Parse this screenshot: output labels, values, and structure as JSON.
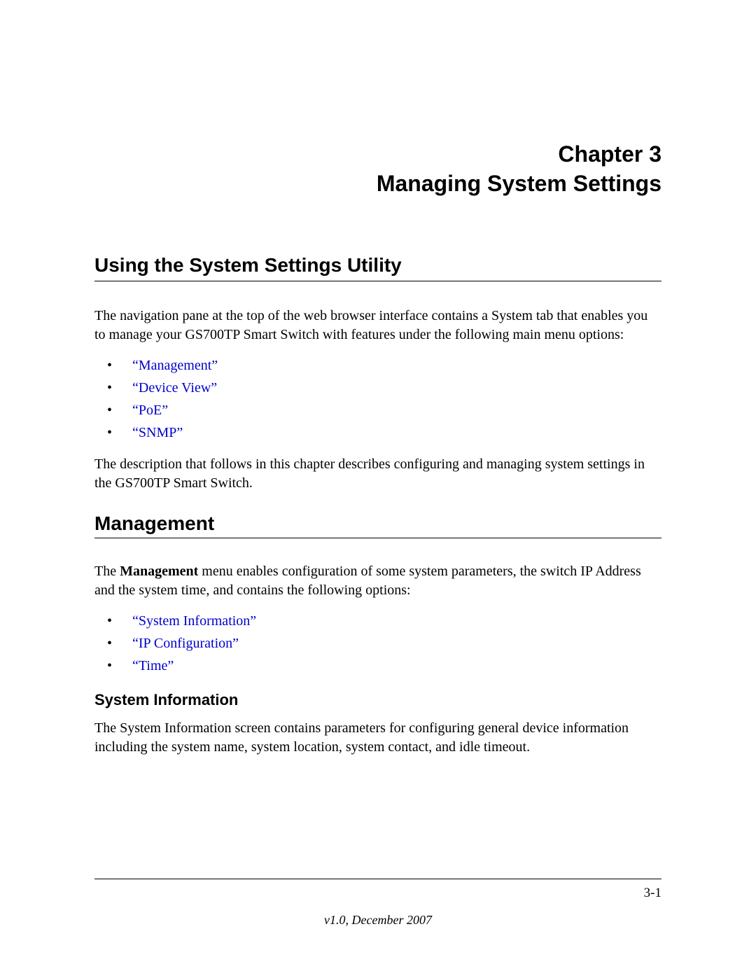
{
  "chapter": {
    "line1": "Chapter 3",
    "line2": "Managing System Settings"
  },
  "section1": {
    "heading": "Using the System Settings Utility",
    "intro": "The navigation pane at the top of the web browser interface contains a System tab that enables you to manage your GS700TP Smart Switch with features under the following main menu options:",
    "links": [
      "“Management”",
      "“Device View”",
      "“PoE”",
      "“SNMP”"
    ],
    "outro": "The description that follows in this chapter describes configuring and managing system settings in the GS700TP Smart Switch."
  },
  "section2": {
    "heading": "Management",
    "para_prefix": "The ",
    "para_bold": "Management",
    "para_suffix": " menu enables configuration of some system parameters, the switch IP Address and the system time, and contains the following options:",
    "links": [
      "“System Information”",
      "“IP Configuration”",
      "“Time”"
    ]
  },
  "section3": {
    "heading": "System Information",
    "para": "The System Information screen contains parameters for configuring general device information including the system name, system location, system contact, and idle timeout."
  },
  "footer": {
    "page": "3-1",
    "version": "v1.0, December 2007"
  },
  "colors": {
    "link": "#0000cc",
    "text": "#000000",
    "background": "#ffffff"
  }
}
